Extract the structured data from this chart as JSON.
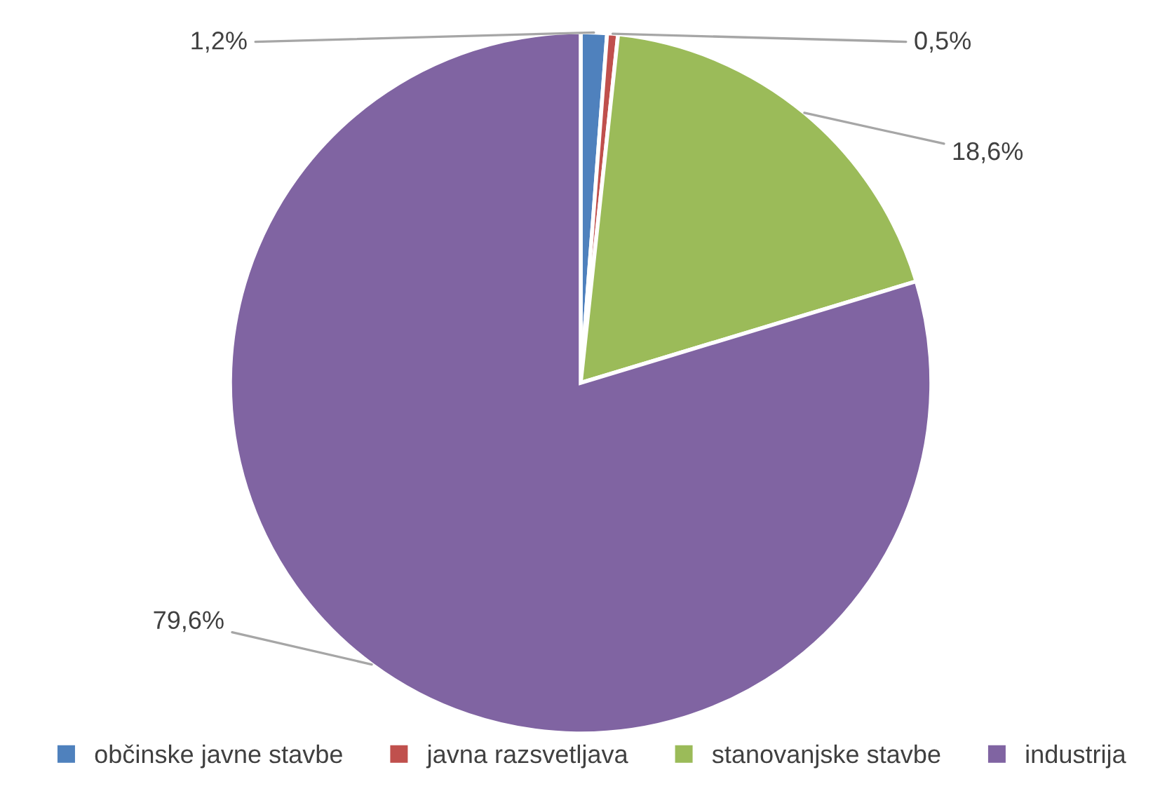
{
  "chart_data": {
    "type": "pie",
    "categories": [
      "občinske javne stavbe",
      "javna razsvetljava",
      "stanovanjske stavbe",
      "industrija"
    ],
    "values": [
      1.2,
      0.5,
      18.6,
      79.6
    ],
    "colors": [
      "#4f81bd",
      "#c0504d",
      "#9bbb59",
      "#8064a2"
    ],
    "value_labels": [
      "1,2%",
      "0,5%",
      "18,6%",
      "79,6%"
    ],
    "legend": "bottom"
  }
}
